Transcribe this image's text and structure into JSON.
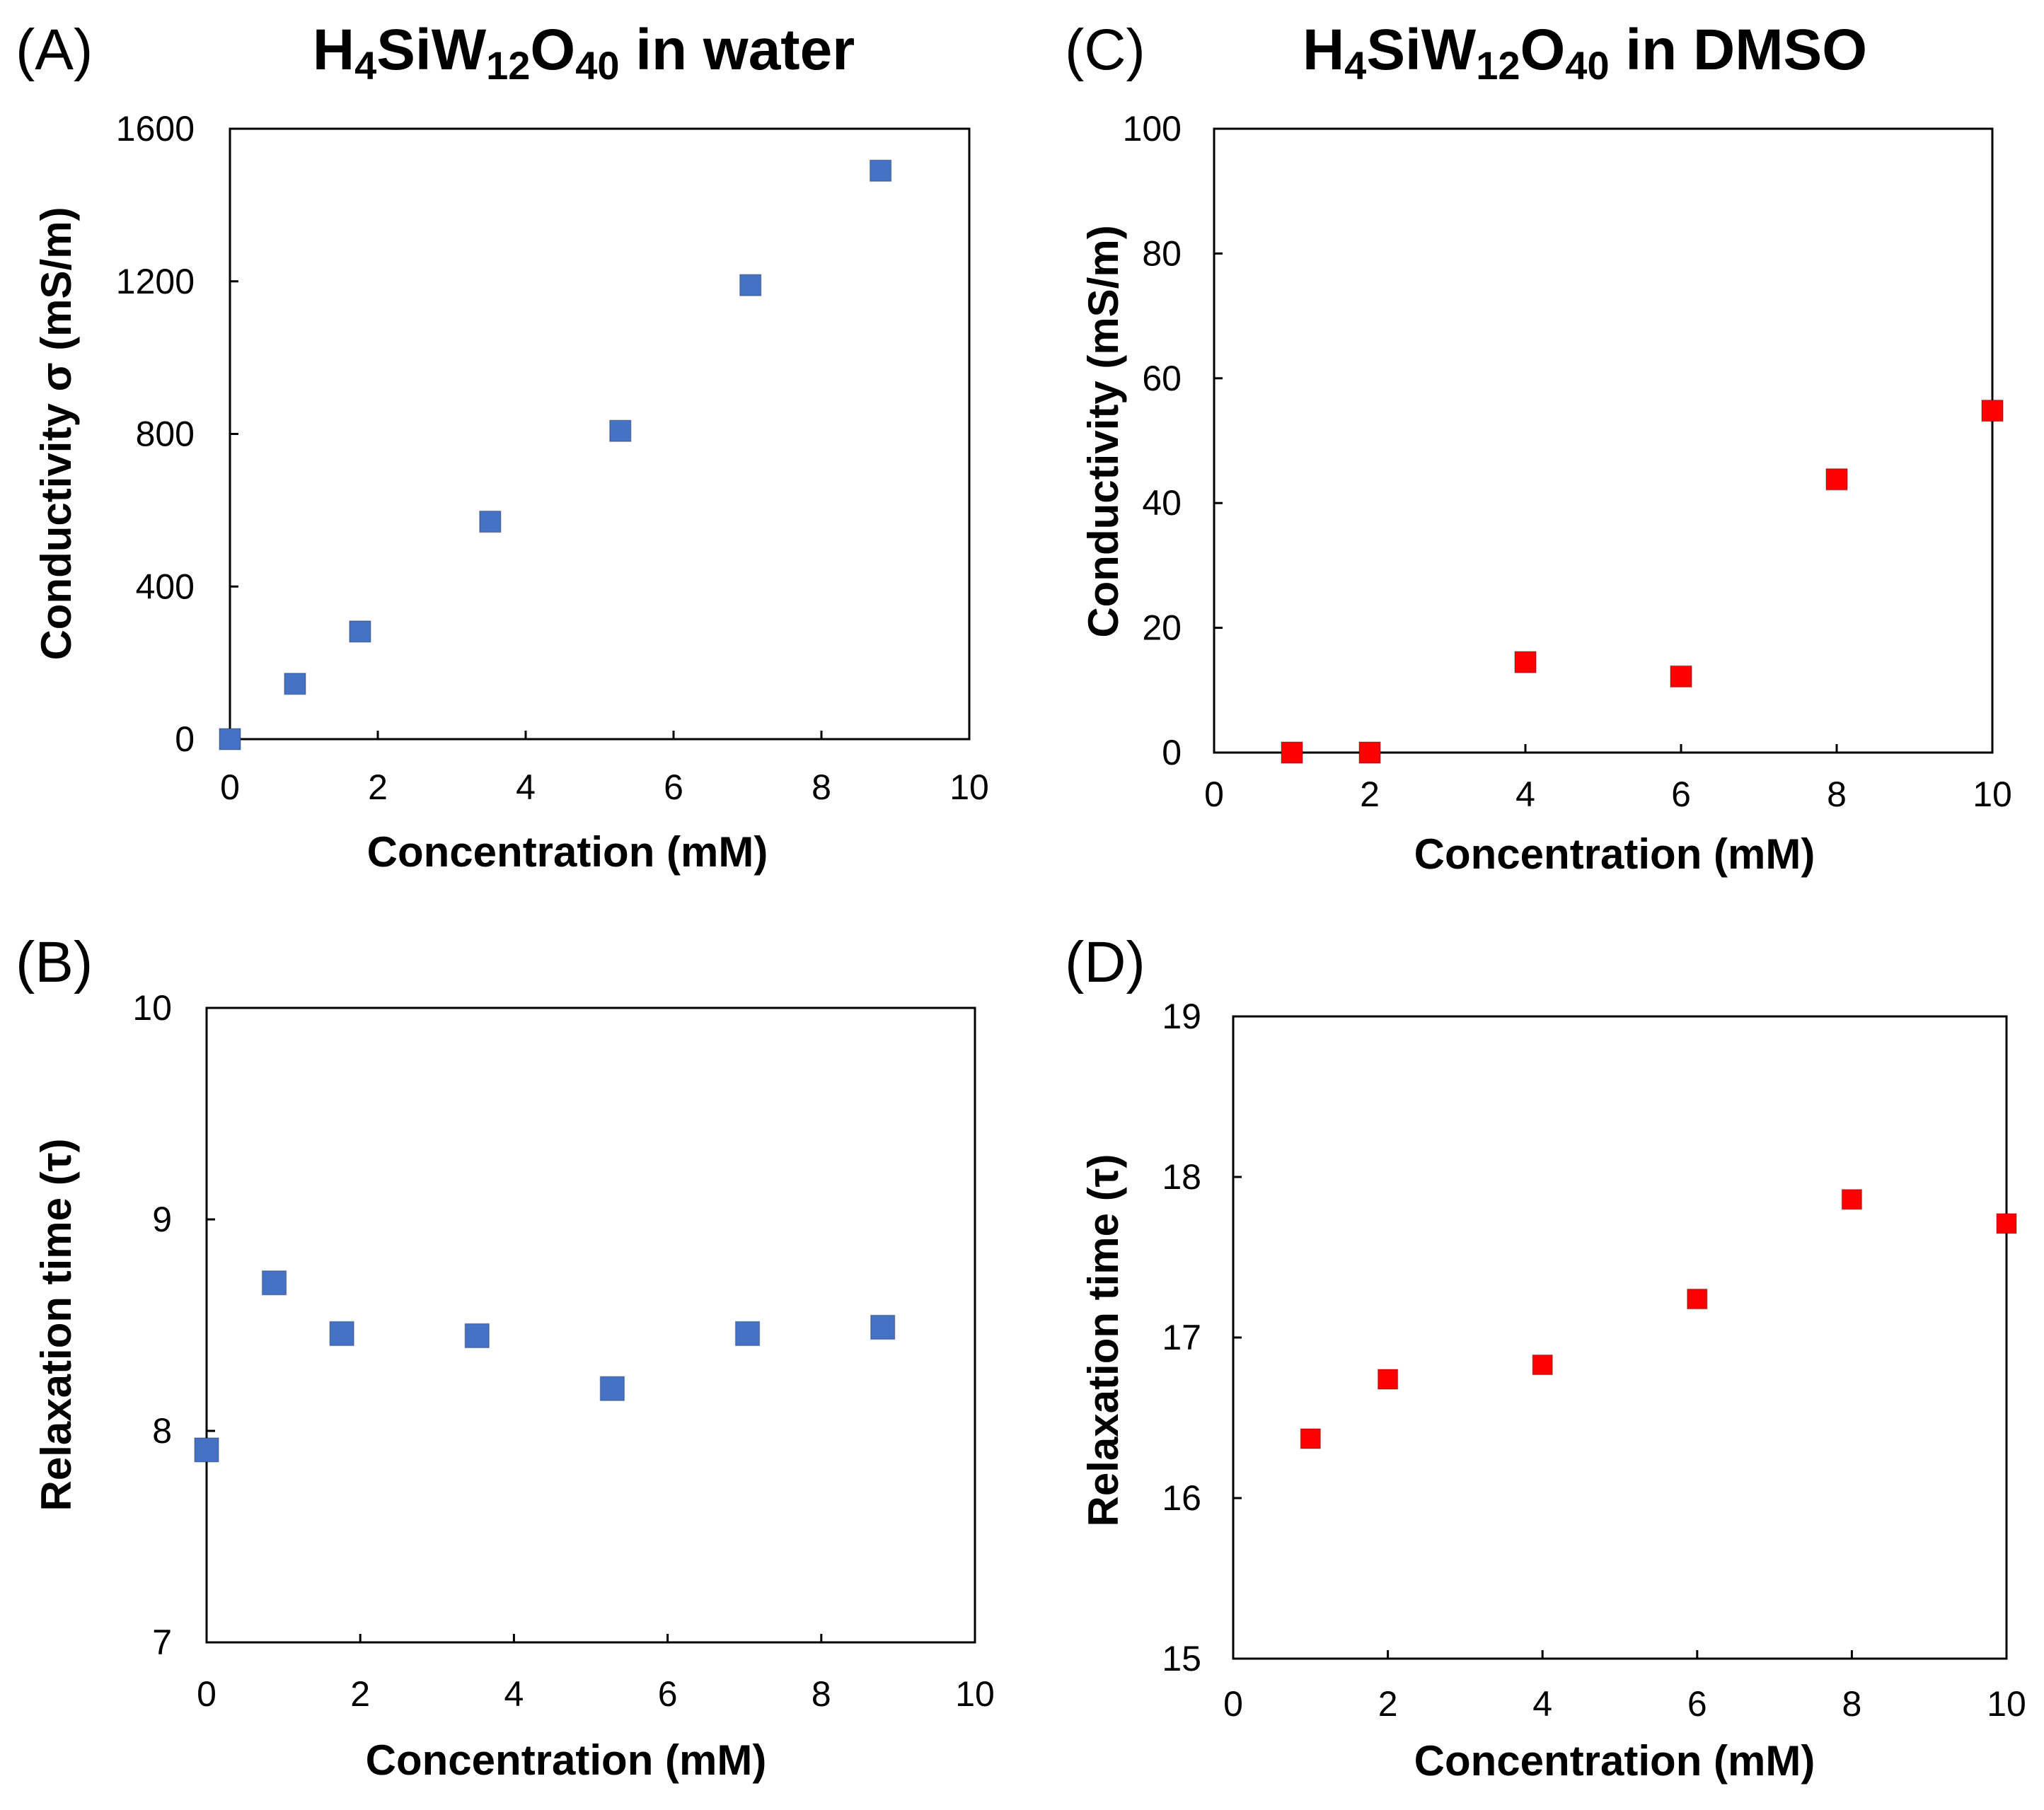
{
  "figure": {
    "column_titles": [
      {
        "prefix": "H",
        "s1": "4",
        "mid": "SiW",
        "s2": "12",
        "o": "O",
        "s3": "40",
        "suffix": " in water"
      },
      {
        "prefix": "H",
        "s1": "4",
        "mid": "SiW",
        "s2": "12",
        "o": "O",
        "s3": "40",
        "suffix": " in DMSO"
      }
    ]
  },
  "colors": {
    "blue": "#4472C4",
    "red": "#FF0000",
    "axis": "#000000"
  },
  "chart_data": [
    {
      "panel": "(A)",
      "type": "scatter",
      "xlabel": "Concentration (mM)",
      "ylabel": "Conductivity σ (mS/m)",
      "xlim": [
        0,
        10
      ],
      "ylim": [
        0,
        1600
      ],
      "xticks": [
        0,
        2,
        4,
        6,
        8,
        10
      ],
      "yticks": [
        0,
        400,
        800,
        1200,
        1600
      ],
      "marker_color": "#4472C4",
      "series": [
        {
          "name": "H4SiW12O40 in water",
          "x": [
            0,
            0.88,
            1.76,
            3.52,
            5.28,
            7.04,
            8.8
          ],
          "y": [
            0,
            145,
            282,
            570,
            808,
            1190,
            1490
          ]
        }
      ]
    },
    {
      "panel": "(B)",
      "type": "scatter",
      "xlabel": "Concentration (mM)",
      "ylabel": "Relaxation time (τ)",
      "xlim": [
        0,
        10
      ],
      "ylim": [
        7,
        10
      ],
      "xticks": [
        0,
        2,
        4,
        6,
        8,
        10
      ],
      "yticks": [
        7,
        8,
        9,
        10
      ],
      "marker_color": "#4472C4",
      "series": [
        {
          "name": "H4SiW12O40 in water",
          "x": [
            0,
            0.88,
            1.76,
            3.52,
            5.28,
            7.04,
            8.8
          ],
          "y": [
            7.91,
            8.7,
            8.46,
            8.45,
            8.2,
            8.46,
            8.49
          ]
        }
      ]
    },
    {
      "panel": "(C)",
      "type": "scatter",
      "xlabel": "Concentration (mM)",
      "ylabel": "Conductivity (mS/m)",
      "xlim": [
        0,
        10
      ],
      "ylim": [
        0,
        100
      ],
      "xticks": [
        0,
        2,
        4,
        6,
        8,
        10
      ],
      "yticks": [
        0,
        20,
        40,
        60,
        80,
        100
      ],
      "marker_color": "#FF0000",
      "series": [
        {
          "name": "H4SiW12O40 in DMSO",
          "x": [
            1,
            2,
            4,
            6,
            8,
            10
          ],
          "y": [
            0,
            0,
            14.5,
            12.2,
            43.8,
            54.8
          ]
        }
      ]
    },
    {
      "panel": "(D)",
      "type": "scatter",
      "xlabel": "Concentration (mM)",
      "ylabel": "Relaxation time (τ)",
      "xlim": [
        0,
        10
      ],
      "ylim": [
        15,
        19
      ],
      "xticks": [
        0,
        2,
        4,
        6,
        8,
        10
      ],
      "yticks": [
        15,
        16,
        17,
        18,
        19
      ],
      "marker_color": "#FF0000",
      "series": [
        {
          "name": "H4SiW12O40 in DMSO",
          "x": [
            1,
            2,
            4,
            6,
            8,
            10
          ],
          "y": [
            16.37,
            16.74,
            16.83,
            17.24,
            17.86,
            17.71
          ]
        }
      ]
    }
  ]
}
